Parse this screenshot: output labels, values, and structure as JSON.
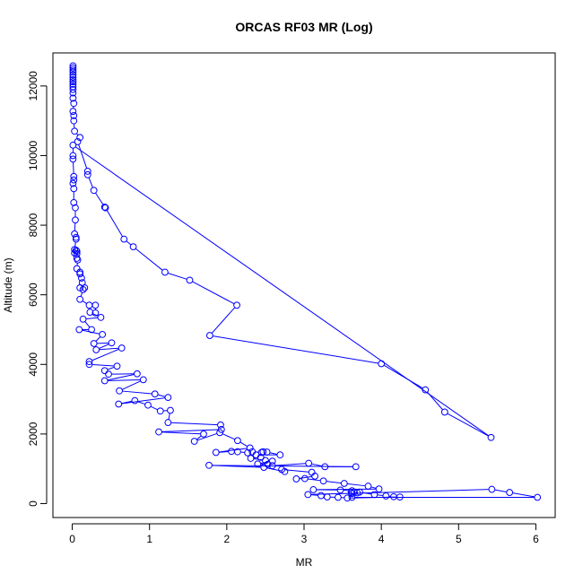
{
  "chart_data": {
    "type": "line",
    "title": "ORCAS RF03 MR (Log)",
    "xlabel": "MR",
    "ylabel": "Altitude (m)",
    "xlim": [
      -0.25,
      6.25
    ],
    "ylim": [
      -400,
      12950
    ],
    "x_ticks": [
      0,
      1,
      2,
      3,
      4,
      5,
      6
    ],
    "y_ticks": [
      0,
      2000,
      4000,
      6000,
      8000,
      10000,
      12000
    ],
    "grid": false,
    "legend": "none",
    "markers": "open-circle",
    "series_color": "#0000ff",
    "series": [
      {
        "name": "",
        "points": [
          [
            0.01,
            12580
          ],
          [
            0.01,
            12520
          ],
          [
            0.01,
            12460
          ],
          [
            0.01,
            12400
          ],
          [
            0.01,
            12320
          ],
          [
            0.01,
            12250
          ],
          [
            0.01,
            12180
          ],
          [
            0.01,
            12120
          ],
          [
            0.01,
            12050
          ],
          [
            0.01,
            11980
          ],
          [
            0.01,
            11900
          ],
          [
            0.01,
            11800
          ],
          [
            0.01,
            11650
          ],
          [
            0.02,
            11500
          ],
          [
            0.01,
            11270
          ],
          [
            0.02,
            11150
          ],
          [
            0.02,
            11000
          ],
          [
            0.03,
            10700
          ],
          [
            0.1,
            10520
          ],
          [
            0.07,
            10400
          ],
          [
            0.2,
            9550
          ],
          [
            0.2,
            9450
          ],
          [
            0.28,
            9000
          ],
          [
            0.42,
            8520
          ],
          [
            0.43,
            8500
          ],
          [
            0.67,
            7600
          ],
          [
            0.79,
            7380
          ],
          [
            1.2,
            6650
          ],
          [
            1.52,
            6420
          ],
          [
            2.13,
            5700
          ],
          [
            1.78,
            4830
          ],
          [
            4.0,
            4020
          ],
          [
            4.57,
            3270
          ],
          [
            4.82,
            2630
          ],
          [
            5.42,
            1900
          ],
          [
            0.01,
            10300
          ],
          [
            0.01,
            10000
          ],
          [
            0.01,
            9900
          ],
          [
            0.02,
            9400
          ],
          [
            0.02,
            9300
          ],
          [
            0.01,
            9200
          ],
          [
            0.02,
            9050
          ],
          [
            0.02,
            8650
          ],
          [
            0.04,
            8500
          ],
          [
            0.04,
            8150
          ],
          [
            0.03,
            7750
          ],
          [
            0.05,
            7650
          ],
          [
            0.05,
            7600
          ],
          [
            0.03,
            7300
          ],
          [
            0.05,
            7280
          ],
          [
            0.06,
            7250
          ],
          [
            0.03,
            7200
          ],
          [
            0.06,
            7180
          ],
          [
            0.06,
            7050
          ],
          [
            0.07,
            7000
          ],
          [
            0.06,
            6750
          ],
          [
            0.1,
            6650
          ],
          [
            0.1,
            6600
          ],
          [
            0.12,
            6480
          ],
          [
            0.13,
            6350
          ],
          [
            0.1,
            6200
          ],
          [
            0.16,
            6200
          ],
          [
            0.14,
            6150
          ],
          [
            0.1,
            5870
          ],
          [
            0.22,
            5700
          ],
          [
            0.3,
            5700
          ],
          [
            0.3,
            5480
          ],
          [
            0.23,
            5500
          ],
          [
            0.37,
            5350
          ],
          [
            0.14,
            5300
          ],
          [
            0.25,
            5000
          ],
          [
            0.09,
            5000
          ],
          [
            0.39,
            4860
          ],
          [
            0.28,
            4600
          ],
          [
            0.51,
            4620
          ],
          [
            0.31,
            4420
          ],
          [
            0.64,
            4470
          ],
          [
            0.22,
            4080
          ],
          [
            0.22,
            4000
          ],
          [
            0.58,
            3950
          ],
          [
            0.42,
            3820
          ],
          [
            0.47,
            3720
          ],
          [
            0.84,
            3730
          ],
          [
            0.42,
            3530
          ],
          [
            0.92,
            3560
          ],
          [
            0.61,
            3240
          ],
          [
            1.07,
            3150
          ],
          [
            1.24,
            3050
          ],
          [
            0.6,
            2860
          ],
          [
            0.81,
            2960
          ],
          [
            0.98,
            2830
          ],
          [
            1.14,
            2660
          ],
          [
            1.27,
            2680
          ],
          [
            1.24,
            2330
          ],
          [
            1.92,
            2260
          ],
          [
            1.93,
            2130
          ],
          [
            1.12,
            2060
          ],
          [
            1.7,
            2000
          ],
          [
            1.58,
            1790
          ],
          [
            1.91,
            2040
          ],
          [
            2.14,
            1810
          ],
          [
            2.3,
            1600
          ],
          [
            1.86,
            1470
          ],
          [
            2.06,
            1500
          ],
          [
            2.14,
            1490
          ],
          [
            2.27,
            1460
          ],
          [
            2.33,
            1490
          ],
          [
            2.45,
            1470
          ],
          [
            2.47,
            1490
          ],
          [
            2.52,
            1480
          ],
          [
            2.69,
            1400
          ],
          [
            2.38,
            1400
          ],
          [
            2.44,
            1330
          ],
          [
            2.31,
            1300
          ],
          [
            2.5,
            1240
          ],
          [
            2.59,
            1220
          ],
          [
            2.4,
            1140
          ],
          [
            2.53,
            1130
          ],
          [
            2.59,
            1090
          ],
          [
            3.06,
            1160
          ],
          [
            3.27,
            1060
          ],
          [
            3.67,
            1060
          ],
          [
            1.77,
            1100
          ],
          [
            2.48,
            1040
          ],
          [
            2.75,
            920
          ],
          [
            2.71,
            980
          ],
          [
            3.1,
            900
          ],
          [
            3.14,
            790
          ],
          [
            2.9,
            710
          ],
          [
            3.01,
            720
          ],
          [
            3.25,
            650
          ],
          [
            3.52,
            580
          ],
          [
            3.83,
            500
          ],
          [
            3.97,
            420
          ],
          [
            3.12,
            400
          ],
          [
            3.47,
            390
          ],
          [
            3.62,
            370
          ],
          [
            3.61,
            320
          ],
          [
            3.65,
            330
          ],
          [
            3.69,
            310
          ],
          [
            3.62,
            290
          ],
          [
            3.72,
            330
          ],
          [
            3.91,
            260
          ],
          [
            4.06,
            220
          ],
          [
            4.16,
            200
          ],
          [
            4.24,
            190
          ],
          [
            3.56,
            160
          ],
          [
            3.44,
            180
          ],
          [
            3.3,
            190
          ],
          [
            3.22,
            230
          ],
          [
            3.05,
            260
          ],
          [
            5.43,
            410
          ],
          [
            5.66,
            320
          ],
          [
            6.02,
            180
          ],
          [
            3.62,
            180
          ]
        ]
      }
    ]
  }
}
